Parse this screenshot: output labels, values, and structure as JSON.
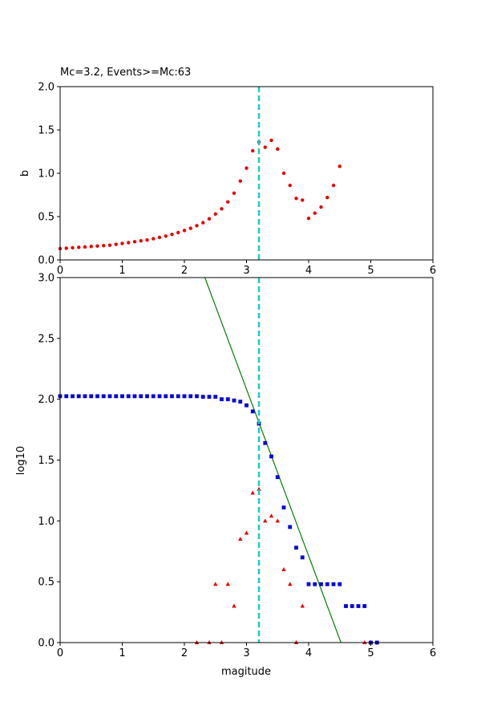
{
  "chart_data": [
    {
      "type": "scatter",
      "title": "Mc=3.2, Events>=Mc:63",
      "xlabel": "",
      "ylabel": "b",
      "xlim": [
        0,
        6
      ],
      "ylim": [
        0,
        2.0
      ],
      "xticks": [
        "0",
        "1",
        "2",
        "3",
        "4",
        "5",
        "6"
      ],
      "yticks": [
        "0.0",
        "0.5",
        "1.0",
        "1.5",
        "2.0"
      ],
      "vline": {
        "x": 3.2,
        "color": "#1fc7c7",
        "style": "dashed"
      },
      "series": [
        {
          "marker": "circle",
          "color": "#e60000",
          "x": [
            0.0,
            0.1,
            0.2,
            0.3,
            0.4,
            0.5,
            0.6,
            0.7,
            0.8,
            0.9,
            1.0,
            1.1,
            1.2,
            1.3,
            1.4,
            1.5,
            1.6,
            1.7,
            1.8,
            1.9,
            2.0,
            2.1,
            2.2,
            2.3,
            2.4,
            2.5,
            2.6,
            2.7,
            2.8,
            2.9,
            3.0,
            3.1,
            3.2,
            3.3,
            3.4,
            3.5,
            3.6,
            3.7,
            3.8,
            3.9,
            4.0,
            4.1,
            4.2,
            4.3,
            4.4,
            4.5
          ],
          "y": [
            0.13,
            0.135,
            0.14,
            0.145,
            0.15,
            0.155,
            0.16,
            0.165,
            0.17,
            0.18,
            0.19,
            0.2,
            0.21,
            0.22,
            0.23,
            0.245,
            0.26,
            0.275,
            0.295,
            0.315,
            0.34,
            0.365,
            0.395,
            0.43,
            0.475,
            0.53,
            0.59,
            0.67,
            0.77,
            0.91,
            1.06,
            1.26,
            1.36,
            1.3,
            1.38,
            1.28,
            1.0,
            0.86,
            0.71,
            0.69,
            0.48,
            0.54,
            0.61,
            0.72,
            0.86,
            1.08
          ]
        }
      ]
    },
    {
      "type": "scatter",
      "title": "",
      "xlabel": "magitude",
      "ylabel": "log10",
      "xlim": [
        0,
        6
      ],
      "ylim": [
        0,
        3.0
      ],
      "xticks": [
        "0",
        "1",
        "2",
        "3",
        "4",
        "5",
        "6"
      ],
      "yticks": [
        "0.0",
        "0.5",
        "1.0",
        "1.5",
        "2.0",
        "2.5",
        "3.0"
      ],
      "vline": {
        "x": 3.2,
        "color": "#1fc7c7",
        "style": "dashed"
      },
      "fit_line": {
        "color": "#008000",
        "x": [
          2.33,
          4.52
        ],
        "y": [
          3.0,
          0.0
        ]
      },
      "series": [
        {
          "marker": "square",
          "color": "#0000dd",
          "x": [
            0.0,
            0.1,
            0.2,
            0.3,
            0.4,
            0.5,
            0.6,
            0.7,
            0.8,
            0.9,
            1.0,
            1.1,
            1.2,
            1.3,
            1.4,
            1.5,
            1.6,
            1.7,
            1.8,
            1.9,
            2.0,
            2.1,
            2.2,
            2.3,
            2.4,
            2.5,
            2.6,
            2.7,
            2.8,
            2.9,
            3.0,
            3.1,
            3.2,
            3.3,
            3.4,
            3.5,
            3.6,
            3.7,
            3.8,
            3.9,
            4.0,
            4.1,
            4.2,
            4.3,
            4.4,
            4.5,
            4.6,
            4.7,
            4.8,
            4.9,
            5.0,
            5.1
          ],
          "y": [
            2.025,
            2.025,
            2.025,
            2.025,
            2.025,
            2.025,
            2.025,
            2.025,
            2.025,
            2.025,
            2.025,
            2.025,
            2.025,
            2.025,
            2.025,
            2.025,
            2.025,
            2.025,
            2.025,
            2.025,
            2.025,
            2.025,
            2.025,
            2.02,
            2.02,
            2.02,
            2.0,
            2.0,
            1.99,
            1.98,
            1.95,
            1.9,
            1.8,
            1.64,
            1.53,
            1.36,
            1.11,
            0.95,
            0.78,
            0.7,
            0.48,
            0.48,
            0.48,
            0.48,
            0.48,
            0.48,
            0.3,
            0.3,
            0.3,
            0.3,
            0.0,
            0.0
          ]
        },
        {
          "marker": "triangle",
          "color": "#e60000",
          "x": [
            2.2,
            2.4,
            2.5,
            2.6,
            2.7,
            2.8,
            2.9,
            3.0,
            3.1,
            3.2,
            3.3,
            3.4,
            3.5,
            3.6,
            3.7,
            3.8,
            3.9,
            4.9,
            5.0
          ],
          "y": [
            0.0,
            0.0,
            0.48,
            0.0,
            0.48,
            0.3,
            0.85,
            0.9,
            1.23,
            1.26,
            1.0,
            1.04,
            1.0,
            0.6,
            0.48,
            0.0,
            0.3,
            0.0,
            0.0
          ]
        }
      ]
    }
  ]
}
